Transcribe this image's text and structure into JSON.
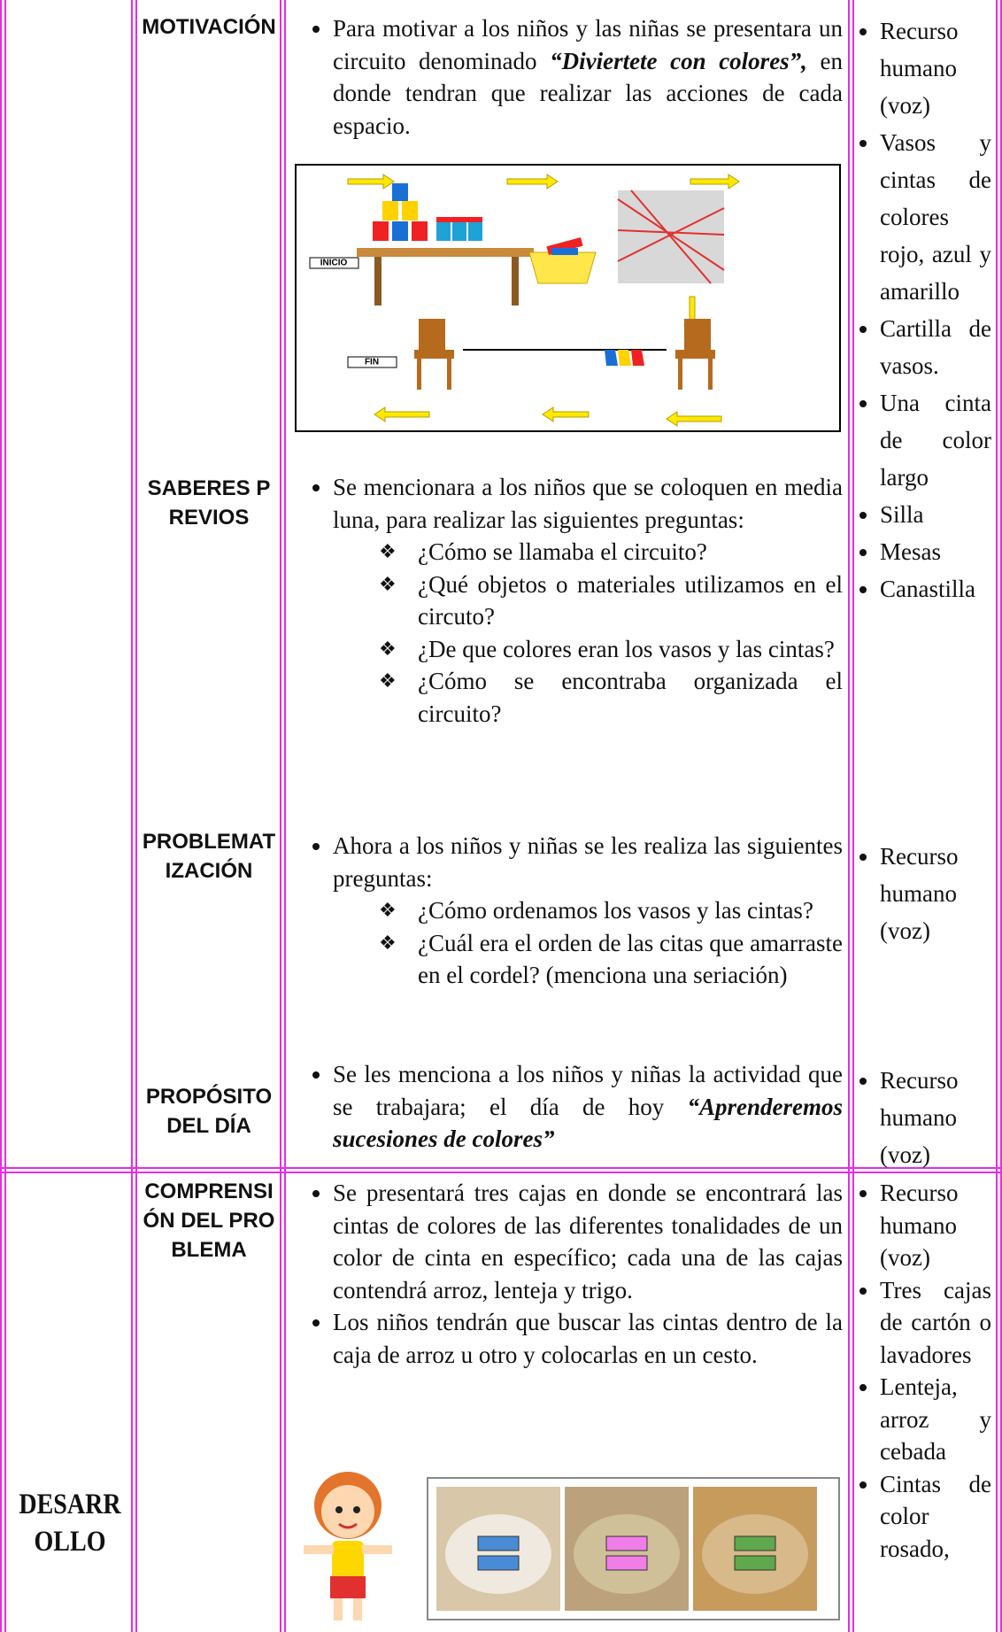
{
  "rows": [
    {
      "steps": [
        {
          "name": "MOTIVACIÓN",
          "activity": [
            {
              "parts": [
                {
                  "text": "Para motivar a los niños y las niñas se presentara un circuito denominado "
                },
                {
                  "text": "“Diviertete con colores”,",
                  "emphasis": true
                },
                {
                  "text": " en donde tendran que realizar las acciones de cada espacio."
                }
              ]
            }
          ],
          "figure": {
            "labels": [
              "INICIO",
              "FIN"
            ]
          },
          "resources": [
            "Recurso humano (voz)",
            "Vasos y cintas de colores rojo, azul y amarillo",
            "Cartilla de vasos.",
            "Una cinta de color largo",
            "Silla",
            "Mesas",
            "Canastilla"
          ]
        },
        {
          "name": "SABERES PREVIOS",
          "activity": [
            {
              "parts": [
                {
                  "text": "Se mencionara a los niños que se coloquen en media luna, para realizar las siguientes preguntas:"
                }
              ],
              "questions": [
                "¿Cómo se llamaba el circuito?",
                "¿Qué objetos o materiales utilizamos en el circuto?",
                "¿De que colores eran los vasos y las cintas?",
                "¿Cómo se encontraba organizada el circuito?"
              ]
            }
          ]
        },
        {
          "name": "PROBLEMATIZACIÓN",
          "activity": [
            {
              "parts": [
                {
                  "text": "Ahora a los niños y niñas se les realiza las siguientes preguntas:"
                }
              ],
              "questions": [
                "¿Cómo ordenamos los vasos y las cintas?",
                "¿Cuál era el orden de las citas que amarraste en el cordel? (menciona una seriación)"
              ]
            }
          ],
          "resources": [
            "Recurso humano (voz)"
          ]
        },
        {
          "name": "PROPÓSITO DEL DÍA",
          "activity": [
            {
              "parts": [
                {
                  "text": "Se les menciona a los niños y niñas la actividad que se trabajara; el día de hoy "
                },
                {
                  "text": "“Aprenderemos sucesiones de colores”",
                  "emphasis": true
                }
              ]
            }
          ],
          "resources": [
            "Recurso humano (voz)"
          ]
        }
      ]
    },
    {
      "stage": "DESARROLLO",
      "steps": [
        {
          "name": "COMPRENSIÓN DEL PROBLEMA",
          "activity": [
            {
              "parts": [
                {
                  "text": "Se presentará tres cajas en donde se encontrará las cintas de colores de las diferentes tonalidades de un color de cinta en específico; cada una de las cajas contendrá arroz, lenteja y trigo."
                }
              ]
            },
            {
              "parts": [
                {
                  "text": "Los niños tendrán que buscar las cintas dentro de la caja de arroz u otro y colocarlas en un cesto."
                }
              ]
            }
          ],
          "resources": [
            "Recurso humano (voz)",
            "Tres cajas de cartón o lavadores",
            "Lenteja, arroz y cebada",
            "Cintas de color rosado,"
          ]
        }
      ]
    }
  ]
}
